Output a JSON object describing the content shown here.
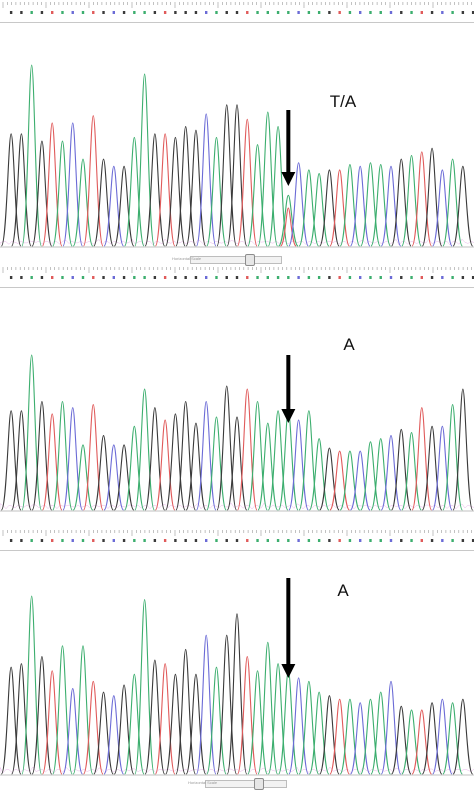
{
  "figure": {
    "colors": {
      "A": "#3cae6e",
      "C": "#6b6bd6",
      "G": "#3a3a3a",
      "T": "#e05a5a",
      "baseline": "#c0c0c0",
      "arrow": "#000000"
    },
    "scrollbar_caption": "Horizontal Scale"
  },
  "chart_data": [
    {
      "type": "line",
      "title": "",
      "panel": "top",
      "marker_label": "T/A",
      "marker_peak_index": 27,
      "grid": false,
      "ylim": [
        0,
        1
      ],
      "series": [
        {
          "base": "sequence",
          "values": [
            0.62,
            0.62,
            1.0,
            0.58,
            0.68,
            0.58,
            0.68,
            0.48,
            0.72,
            0.48,
            0.44,
            0.44,
            0.6,
            0.95,
            0.62,
            0.62,
            0.6,
            0.66,
            0.64,
            0.73,
            0.6,
            0.78,
            0.78,
            0.7,
            0.56,
            0.74,
            0.66,
            0.28,
            0.46,
            0.42,
            0.4,
            0.42,
            0.42,
            0.45,
            0.44,
            0.46,
            0.45,
            0.44,
            0.48,
            0.5,
            0.52,
            0.54,
            0.42,
            0.48,
            0.44
          ],
          "bases": [
            "G",
            "G",
            "A",
            "G",
            "T",
            "A",
            "C",
            "A",
            "T",
            "G",
            "C",
            "G",
            "A",
            "A",
            "G",
            "T",
            "G",
            "G",
            "G",
            "C",
            "A",
            "G",
            "G",
            "T",
            "A",
            "A",
            "A",
            "A",
            "C",
            "A",
            "A",
            "G",
            "T",
            "A",
            "C",
            "A",
            "A",
            "C",
            "G",
            "A",
            "T",
            "G",
            "C",
            "A",
            "G"
          ]
        }
      ]
    },
    {
      "type": "line",
      "title": "",
      "panel": "middle",
      "marker_label": "A",
      "marker_peak_index": 27,
      "grid": false,
      "ylim": [
        0,
        1
      ],
      "series": [
        {
          "base": "sequence",
          "values": [
            0.64,
            0.64,
            1.0,
            0.7,
            0.62,
            0.7,
            0.66,
            0.42,
            0.68,
            0.48,
            0.42,
            0.42,
            0.54,
            0.78,
            0.66,
            0.58,
            0.62,
            0.7,
            0.56,
            0.7,
            0.6,
            0.8,
            0.6,
            0.78,
            0.7,
            0.56,
            0.64,
            0.64,
            0.58,
            0.64,
            0.46,
            0.4,
            0.38,
            0.38,
            0.38,
            0.44,
            0.46,
            0.48,
            0.52,
            0.5,
            0.66,
            0.54,
            0.54,
            0.68,
            0.78
          ],
          "bases": [
            "G",
            "G",
            "A",
            "G",
            "T",
            "A",
            "C",
            "A",
            "T",
            "G",
            "C",
            "G",
            "A",
            "A",
            "G",
            "T",
            "G",
            "G",
            "G",
            "C",
            "A",
            "G",
            "G",
            "T",
            "A",
            "A",
            "A",
            "A",
            "C",
            "A",
            "A",
            "G",
            "T",
            "A",
            "C",
            "A",
            "A",
            "C",
            "G",
            "A",
            "T",
            "G",
            "C",
            "A",
            "G"
          ]
        }
      ]
    },
    {
      "type": "line",
      "title": "",
      "panel": "bottom",
      "marker_label": "A",
      "marker_peak_index": 27,
      "grid": false,
      "ylim": [
        0,
        1
      ],
      "series": [
        {
          "base": "sequence",
          "values": [
            0.6,
            0.62,
            1.0,
            0.66,
            0.58,
            0.72,
            0.48,
            0.72,
            0.52,
            0.46,
            0.44,
            0.5,
            0.56,
            0.98,
            0.64,
            0.62,
            0.56,
            0.7,
            0.56,
            0.78,
            0.6,
            0.78,
            0.9,
            0.66,
            0.58,
            0.74,
            0.62,
            0.58,
            0.54,
            0.52,
            0.46,
            0.44,
            0.42,
            0.42,
            0.4,
            0.42,
            0.46,
            0.52,
            0.38,
            0.36,
            0.36,
            0.4,
            0.42,
            0.4,
            0.42
          ],
          "bases": [
            "G",
            "G",
            "A",
            "G",
            "T",
            "A",
            "C",
            "A",
            "T",
            "G",
            "C",
            "G",
            "A",
            "A",
            "G",
            "T",
            "G",
            "G",
            "G",
            "C",
            "A",
            "G",
            "G",
            "T",
            "A",
            "A",
            "A",
            "A",
            "C",
            "A",
            "A",
            "G",
            "T",
            "A",
            "C",
            "A",
            "A",
            "C",
            "G",
            "A",
            "T",
            "G",
            "C",
            "A",
            "G"
          ]
        }
      ]
    }
  ]
}
